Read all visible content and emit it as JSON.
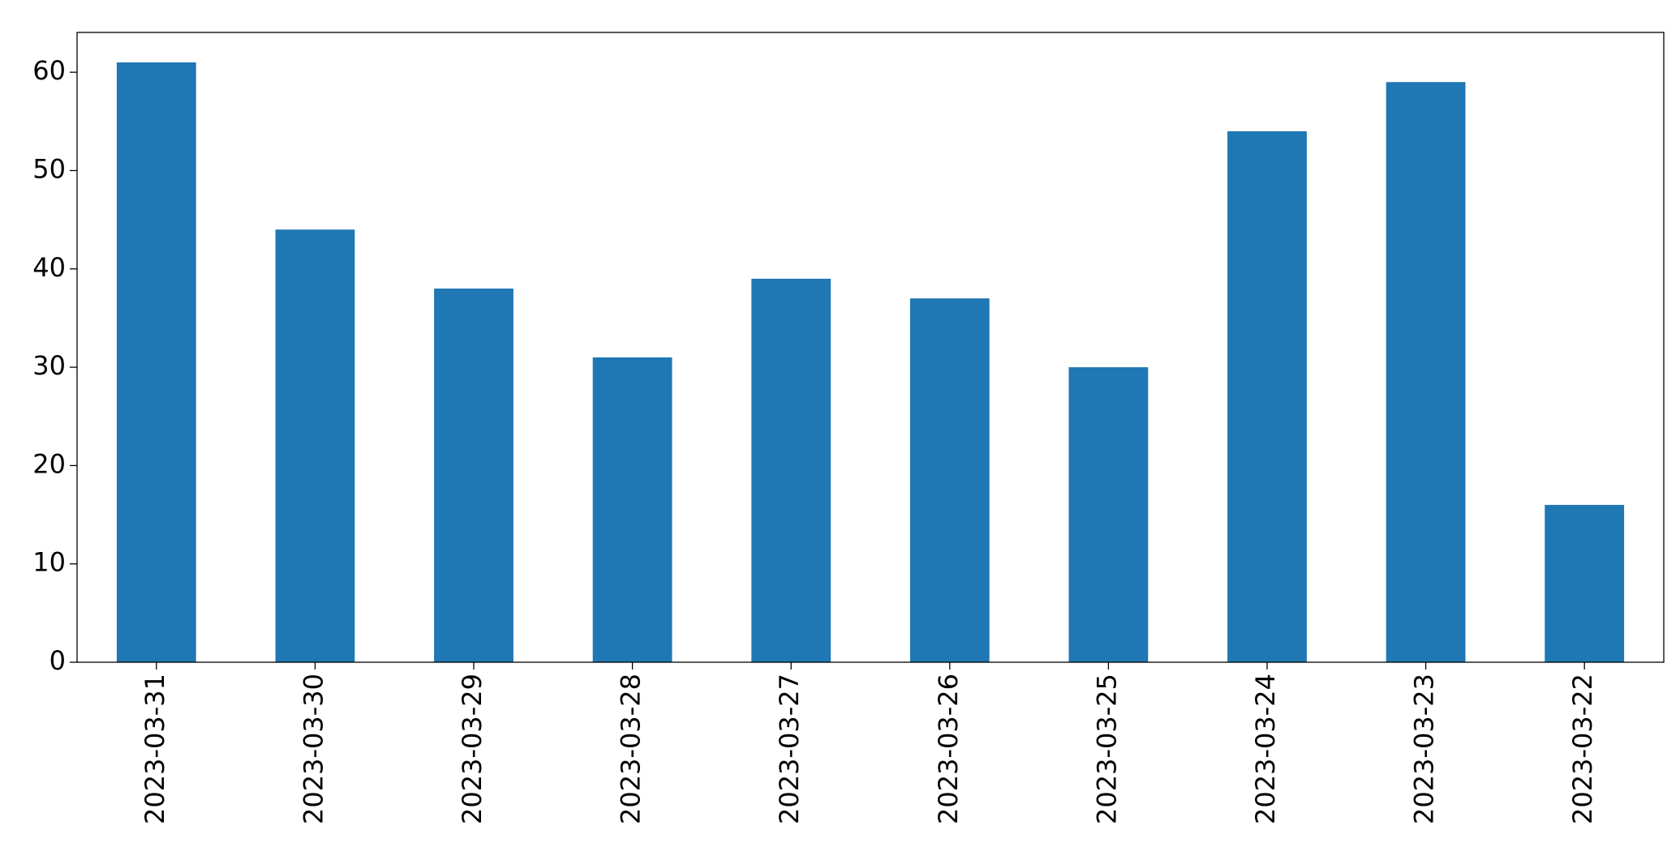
{
  "chart_data": {
    "type": "bar",
    "categories": [
      "2023-03-31",
      "2023-03-30",
      "2023-03-29",
      "2023-03-28",
      "2023-03-27",
      "2023-03-26",
      "2023-03-25",
      "2023-03-24",
      "2023-03-23",
      "2023-03-22"
    ],
    "values": [
      61,
      44,
      38,
      31,
      39,
      37,
      30,
      54,
      59,
      16
    ],
    "color": "#1f77b4",
    "ylim": [
      0,
      64.05
    ],
    "yticks": [
      0,
      10,
      20,
      30,
      40,
      50,
      60
    ],
    "grid": false
  }
}
